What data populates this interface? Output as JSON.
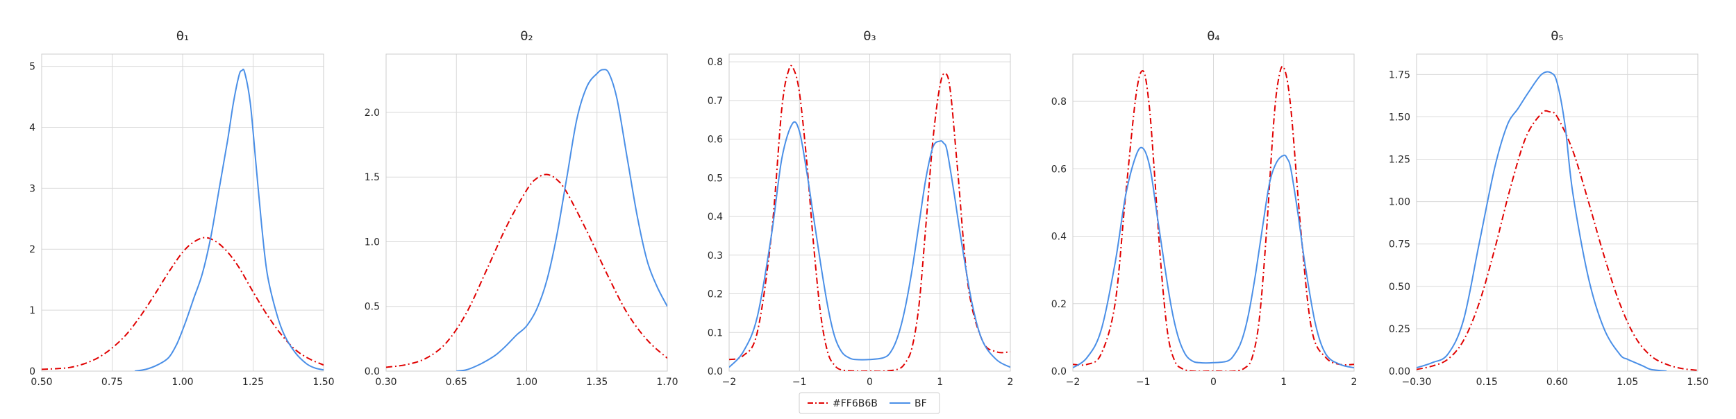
{
  "chart_data": [
    {
      "type": "line",
      "title": "θ₁",
      "xlim": [
        0.5,
        1.5
      ],
      "ylim": [
        0,
        5.2
      ],
      "xticks": [
        "0.50",
        "0.75",
        "1.00",
        "1.25",
        "1.50"
      ],
      "yticks": [
        "0",
        "1",
        "2",
        "3",
        "4",
        "5"
      ],
      "grid": true,
      "series": [
        {
          "name": "#FF6B6B",
          "color": "#e00000",
          "style": "dashdot",
          "x": [
            0.5,
            0.55,
            0.6,
            0.65,
            0.7,
            0.75,
            0.8,
            0.85,
            0.9,
            0.95,
            1.0,
            1.04,
            1.08,
            1.12,
            1.16,
            1.2,
            1.25,
            1.3,
            1.35,
            1.4,
            1.45,
            1.5
          ],
          "y": [
            0.03,
            0.04,
            0.06,
            0.12,
            0.22,
            0.38,
            0.6,
            0.9,
            1.25,
            1.62,
            1.95,
            2.12,
            2.19,
            2.12,
            1.95,
            1.7,
            1.3,
            0.92,
            0.6,
            0.35,
            0.2,
            0.1
          ]
        },
        {
          "name": "BF",
          "color": "#4a8fe7",
          "style": "solid",
          "x": [
            0.83,
            0.87,
            0.91,
            0.95,
            0.98,
            1.01,
            1.04,
            1.07,
            1.1,
            1.13,
            1.16,
            1.18,
            1.2,
            1.21,
            1.22,
            1.24,
            1.26,
            1.28,
            1.3,
            1.33,
            1.36,
            1.4,
            1.44,
            1.47,
            1.5
          ],
          "y": [
            0.0,
            0.03,
            0.1,
            0.22,
            0.45,
            0.8,
            1.2,
            1.6,
            2.2,
            3.0,
            3.8,
            4.4,
            4.85,
            4.93,
            4.9,
            4.4,
            3.4,
            2.4,
            1.6,
            1.0,
            0.6,
            0.3,
            0.12,
            0.05,
            0.02
          ]
        }
      ]
    },
    {
      "type": "line",
      "title": "θ₂",
      "xlim": [
        0.3,
        1.7
      ],
      "ylim": [
        0,
        2.45
      ],
      "xticks": [
        "0.30",
        "0.65",
        "1.00",
        "1.35",
        "1.70"
      ],
      "yticks": [
        "0.0",
        "0.5",
        "1.0",
        "1.5",
        "2.0"
      ],
      "grid": true,
      "series": [
        {
          "name": "#FF6B6B",
          "color": "#e00000",
          "style": "dashdot",
          "x": [
            0.3,
            0.4,
            0.5,
            0.6,
            0.7,
            0.8,
            0.9,
            1.0,
            1.05,
            1.1,
            1.15,
            1.2,
            1.3,
            1.4,
            1.5,
            1.6,
            1.7
          ],
          "y": [
            0.03,
            0.05,
            0.1,
            0.22,
            0.45,
            0.78,
            1.12,
            1.4,
            1.49,
            1.52,
            1.48,
            1.38,
            1.08,
            0.75,
            0.45,
            0.24,
            0.1
          ]
        },
        {
          "name": "BF",
          "color": "#4a8fe7",
          "style": "solid",
          "x": [
            0.65,
            0.7,
            0.75,
            0.8,
            0.85,
            0.9,
            0.95,
            1.0,
            1.05,
            1.1,
            1.15,
            1.2,
            1.25,
            1.3,
            1.35,
            1.38,
            1.41,
            1.45,
            1.5,
            1.55,
            1.6,
            1.65,
            1.7
          ],
          "y": [
            0.0,
            0.01,
            0.04,
            0.08,
            0.13,
            0.2,
            0.28,
            0.35,
            0.48,
            0.7,
            1.05,
            1.5,
            1.95,
            2.2,
            2.3,
            2.33,
            2.3,
            2.1,
            1.65,
            1.2,
            0.85,
            0.65,
            0.5
          ]
        }
      ]
    },
    {
      "type": "line",
      "title": "θ₃",
      "xlim": [
        -2,
        2
      ],
      "ylim": [
        0,
        0.82
      ],
      "xticks": [
        "−2",
        "−1",
        "0",
        "1",
        "2"
      ],
      "yticks": [
        "0.0",
        "0.1",
        "0.2",
        "0.3",
        "0.4",
        "0.5",
        "0.6",
        "0.7",
        "0.8"
      ],
      "grid": true,
      "series": [
        {
          "name": "#FF6B6B",
          "color": "#e00000",
          "style": "dashdot",
          "x": [
            -2.0,
            -1.8,
            -1.6,
            -1.4,
            -1.25,
            -1.15,
            -1.08,
            -1.0,
            -0.9,
            -0.8,
            -0.7,
            -0.6,
            -0.5,
            -0.4,
            -0.2,
            0.0,
            0.2,
            0.4,
            0.5,
            0.6,
            0.7,
            0.8,
            0.9,
            1.0,
            1.08,
            1.15,
            1.25,
            1.4,
            1.6,
            1.8,
            2.0
          ],
          "y": [
            0.03,
            0.04,
            0.1,
            0.35,
            0.68,
            0.78,
            0.78,
            0.72,
            0.55,
            0.33,
            0.15,
            0.05,
            0.015,
            0.003,
            0.0,
            0.0,
            0.0,
            0.005,
            0.02,
            0.06,
            0.17,
            0.38,
            0.6,
            0.74,
            0.77,
            0.72,
            0.52,
            0.22,
            0.08,
            0.05,
            0.05
          ]
        },
        {
          "name": "BF",
          "color": "#4a8fe7",
          "style": "solid",
          "x": [
            -2.0,
            -1.8,
            -1.6,
            -1.4,
            -1.25,
            -1.1,
            -1.0,
            -0.9,
            -0.8,
            -0.7,
            -0.6,
            -0.5,
            -0.4,
            -0.3,
            -0.2,
            0.0,
            0.2,
            0.3,
            0.4,
            0.5,
            0.6,
            0.7,
            0.8,
            0.9,
            1.0,
            1.05,
            1.1,
            1.2,
            1.3,
            1.45,
            1.6,
            1.8,
            2.0
          ],
          "y": [
            0.01,
            0.05,
            0.14,
            0.35,
            0.55,
            0.64,
            0.62,
            0.52,
            0.4,
            0.28,
            0.17,
            0.09,
            0.05,
            0.035,
            0.03,
            0.03,
            0.035,
            0.05,
            0.09,
            0.16,
            0.26,
            0.38,
            0.5,
            0.58,
            0.595,
            0.59,
            0.57,
            0.46,
            0.34,
            0.18,
            0.08,
            0.03,
            0.01
          ]
        }
      ]
    },
    {
      "type": "line",
      "title": "θ₄",
      "xlim": [
        -2,
        2
      ],
      "ylim": [
        0,
        0.94
      ],
      "xticks": [
        "−2",
        "−1",
        "0",
        "1",
        "2"
      ],
      "yticks": [
        "0.0",
        "0.2",
        "0.4",
        "0.6",
        "0.8"
      ],
      "grid": true,
      "series": [
        {
          "name": "#FF6B6B",
          "color": "#e00000",
          "style": "dashdot",
          "x": [
            -2.0,
            -1.8,
            -1.6,
            -1.4,
            -1.25,
            -1.1,
            -1.0,
            -0.92,
            -0.85,
            -0.75,
            -0.65,
            -0.55,
            -0.45,
            -0.3,
            0.0,
            0.3,
            0.45,
            0.55,
            0.65,
            0.75,
            0.85,
            0.92,
            1.0,
            1.1,
            1.25,
            1.4,
            1.6,
            1.8,
            2.0
          ],
          "y": [
            0.02,
            0.02,
            0.05,
            0.2,
            0.52,
            0.82,
            0.89,
            0.8,
            0.62,
            0.32,
            0.11,
            0.03,
            0.008,
            0.0,
            0.0,
            0.0,
            0.01,
            0.04,
            0.15,
            0.4,
            0.72,
            0.86,
            0.9,
            0.78,
            0.4,
            0.12,
            0.04,
            0.02,
            0.02
          ]
        },
        {
          "name": "BF",
          "color": "#4a8fe7",
          "style": "solid",
          "x": [
            -2.0,
            -1.8,
            -1.6,
            -1.4,
            -1.25,
            -1.1,
            -1.0,
            -0.9,
            -0.8,
            -0.7,
            -0.6,
            -0.5,
            -0.4,
            -0.3,
            -0.2,
            0.0,
            0.2,
            0.3,
            0.4,
            0.5,
            0.6,
            0.7,
            0.8,
            0.9,
            1.0,
            1.05,
            1.1,
            1.2,
            1.3,
            1.45,
            1.6,
            1.8,
            2.0
          ],
          "y": [
            0.01,
            0.04,
            0.12,
            0.32,
            0.52,
            0.64,
            0.66,
            0.6,
            0.46,
            0.32,
            0.19,
            0.1,
            0.05,
            0.03,
            0.025,
            0.025,
            0.03,
            0.05,
            0.09,
            0.17,
            0.29,
            0.43,
            0.56,
            0.62,
            0.64,
            0.63,
            0.6,
            0.47,
            0.32,
            0.14,
            0.05,
            0.02,
            0.01
          ]
        }
      ]
    },
    {
      "type": "line",
      "title": "θ₅",
      "xlim": [
        -0.3,
        1.5
      ],
      "ylim": [
        0,
        1.87
      ],
      "xticks": [
        "−0.30",
        "0.15",
        "0.60",
        "1.05",
        "1.50"
      ],
      "yticks": [
        "0.00",
        "0.25",
        "0.50",
        "0.75",
        "1.00",
        "1.25",
        "1.50",
        "1.75"
      ],
      "grid": true,
      "series": [
        {
          "name": "#FF6B6B",
          "color": "#e00000",
          "style": "dashdot",
          "x": [
            -0.3,
            -0.2,
            -0.1,
            0.0,
            0.1,
            0.2,
            0.3,
            0.4,
            0.5,
            0.55,
            0.6,
            0.7,
            0.8,
            0.9,
            1.0,
            1.1,
            1.2,
            1.3,
            1.4,
            1.5
          ],
          "y": [
            0.01,
            0.03,
            0.07,
            0.18,
            0.4,
            0.72,
            1.08,
            1.38,
            1.52,
            1.53,
            1.5,
            1.3,
            1.0,
            0.68,
            0.4,
            0.2,
            0.09,
            0.04,
            0.015,
            0.005
          ]
        },
        {
          "name": "BF",
          "color": "#4a8fe7",
          "style": "solid",
          "x": [
            -0.3,
            -0.2,
            -0.1,
            0.0,
            0.1,
            0.2,
            0.28,
            0.35,
            0.42,
            0.5,
            0.56,
            0.6,
            0.65,
            0.7,
            0.8,
            0.9,
            1.0,
            1.05,
            1.1,
            1.15,
            1.2,
            1.3
          ],
          "y": [
            0.02,
            0.05,
            0.1,
            0.3,
            0.75,
            1.2,
            1.45,
            1.55,
            1.65,
            1.75,
            1.76,
            1.7,
            1.45,
            1.05,
            0.55,
            0.25,
            0.1,
            0.07,
            0.05,
            0.03,
            0.01,
            0.0
          ]
        }
      ]
    }
  ],
  "legend": {
    "placement": "bottom-center",
    "entries": [
      {
        "label": "#FF6B6B",
        "color": "#e00000",
        "style": "dashdot"
      },
      {
        "label": "BF",
        "color": "#4a8fe7",
        "style": "solid"
      }
    ]
  }
}
